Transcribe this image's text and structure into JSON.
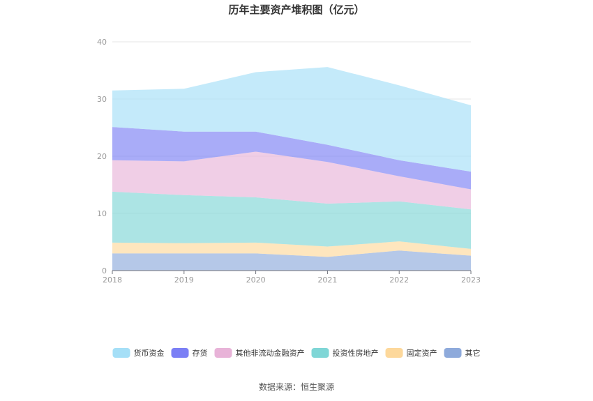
{
  "chart_data": {
    "type": "area",
    "stacked": true,
    "title": "历年主要资产堆积图（亿元）",
    "categories": [
      "2018",
      "2019",
      "2020",
      "2021",
      "2022",
      "2023"
    ],
    "ylim": [
      0,
      40
    ],
    "yticks": [
      0,
      10,
      20,
      30,
      40
    ],
    "grid": true,
    "legend_position": "bottom",
    "series": [
      {
        "name": "其它",
        "color": "#8eaadb",
        "values": [
          3.0,
          3.0,
          3.0,
          2.4,
          3.5,
          2.6
        ]
      },
      {
        "name": "固定资产",
        "color": "#fdd89b",
        "values": [
          1.9,
          1.8,
          1.9,
          1.8,
          1.6,
          1.2
        ]
      },
      {
        "name": "投资性房地产",
        "color": "#7fd6d6",
        "values": [
          8.9,
          8.4,
          7.9,
          7.5,
          7.0,
          6.9
        ]
      },
      {
        "name": "其他非流动金融资产",
        "color": "#e8b3d8",
        "values": [
          5.5,
          5.9,
          8.0,
          7.3,
          4.4,
          3.5
        ]
      },
      {
        "name": "存货",
        "color": "#7b7ff5",
        "values": [
          5.8,
          5.2,
          3.5,
          3.0,
          2.8,
          3.1
        ]
      },
      {
        "name": "货币资金",
        "color": "#a5dff7",
        "values": [
          6.4,
          7.5,
          10.4,
          13.6,
          13.1,
          11.6
        ]
      }
    ],
    "legend_order": [
      "货币资金",
      "存货",
      "其他非流动金融资产",
      "投资性房地产",
      "固定资产",
      "其它"
    ]
  },
  "footer": {
    "source": "数据来源：恒生聚源"
  }
}
